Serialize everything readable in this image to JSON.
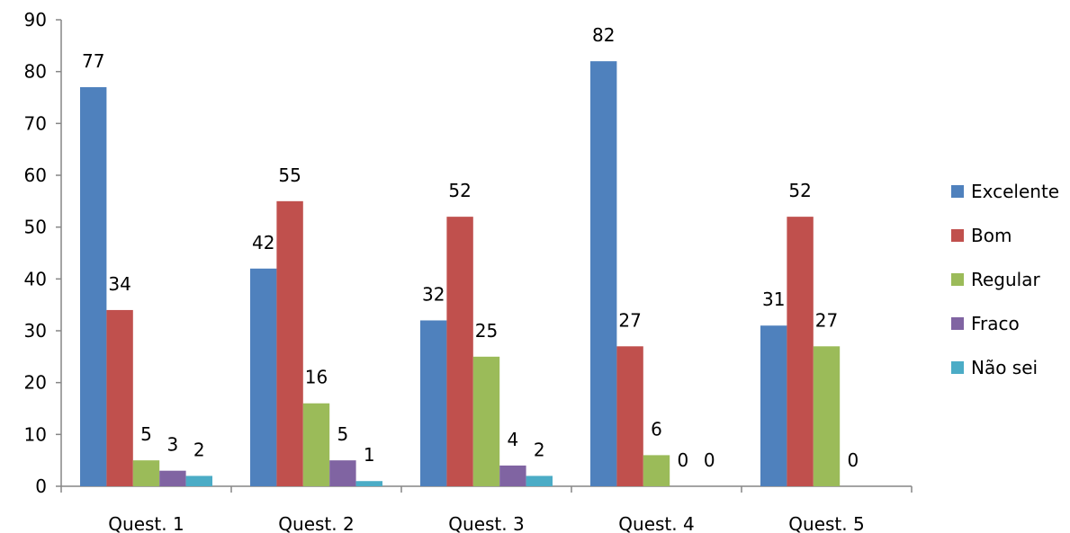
{
  "chart_data": {
    "type": "bar",
    "categories": [
      "Quest. 1",
      "Quest. 2",
      "Quest. 3",
      "Quest. 4",
      "Quest. 5"
    ],
    "series": [
      {
        "name": "Excelente",
        "color": "#4F81BD",
        "values": [
          77,
          42,
          32,
          82,
          31
        ]
      },
      {
        "name": "Bom",
        "color": "#C0504D",
        "values": [
          34,
          55,
          52,
          27,
          52
        ]
      },
      {
        "name": "Regular",
        "color": "#9BBB59",
        "values": [
          5,
          16,
          25,
          6,
          27
        ]
      },
      {
        "name": "Fraco",
        "color": "#8064A2",
        "values": [
          3,
          5,
          4,
          0,
          0
        ]
      },
      {
        "name": "Não sei",
        "color": "#4BACC6",
        "values": [
          2,
          1,
          2,
          0,
          null
        ]
      }
    ],
    "ylim": [
      0,
      90
    ],
    "yticks": [
      0,
      10,
      20,
      30,
      40,
      50,
      60,
      70,
      80,
      90
    ],
    "grid": false,
    "legend_position": "right",
    "data_labels": true
  }
}
